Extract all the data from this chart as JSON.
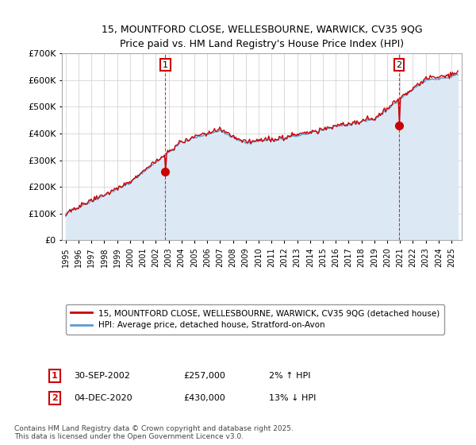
{
  "title_line1": "15, MOUNTFORD CLOSE, WELLESBOURNE, WARWICK, CV35 9QG",
  "title_line2": "Price paid vs. HM Land Registry's House Price Index (HPI)",
  "legend_label1": "15, MOUNTFORD CLOSE, WELLESBOURNE, WARWICK, CV35 9QG (detached house)",
  "legend_label2": "HPI: Average price, detached house, Stratford-on-Avon",
  "annotation1_date": "30-SEP-2002",
  "annotation1_price": "£257,000",
  "annotation1_hpi": "2% ↑ HPI",
  "annotation2_date": "04-DEC-2020",
  "annotation2_price": "£430,000",
  "annotation2_hpi": "13% ↓ HPI",
  "copyright_text": "Contains HM Land Registry data © Crown copyright and database right 2025.\nThis data is licensed under the Open Government Licence v3.0.",
  "line1_color": "#cc0000",
  "line2_color": "#5b9bd5",
  "fill_color": "#dce9f5",
  "background_color": "#ffffff",
  "grid_color": "#cccccc",
  "ylim": [
    0,
    700000
  ],
  "yticks": [
    0,
    100000,
    200000,
    300000,
    400000,
    500000,
    600000,
    700000
  ],
  "sale1_year": 2002.75,
  "sale1_value": 257000,
  "sale2_year": 2020.92,
  "sale2_value": 430000,
  "xstart": 1995,
  "xend": 2025
}
